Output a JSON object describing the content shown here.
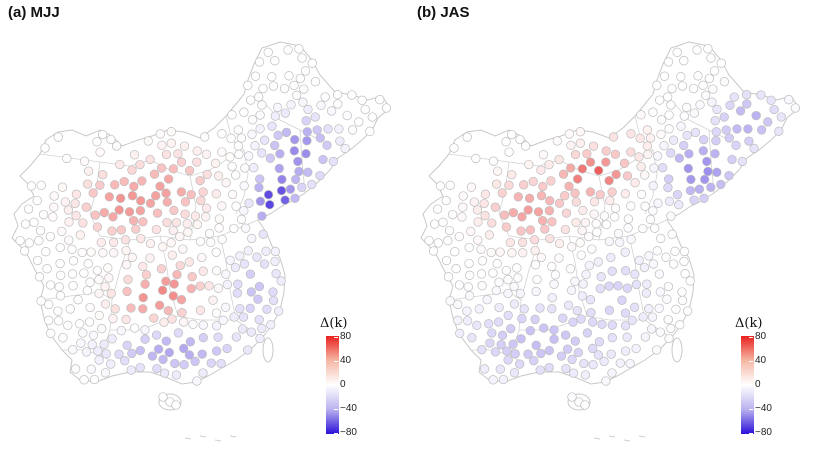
{
  "panels": [
    {
      "id": "a",
      "title": "(a) MJJ"
    },
    {
      "id": "b",
      "title": "(b) JAS"
    }
  ],
  "legend": {
    "title": "Δ(k)",
    "ticks": [
      "80",
      "40",
      "0",
      "−40",
      "−80"
    ],
    "colors": {
      "high": "#e8201d",
      "mid": "#ffffff",
      "low": "#2b10d8"
    },
    "range": [
      -80,
      80
    ]
  }
}
